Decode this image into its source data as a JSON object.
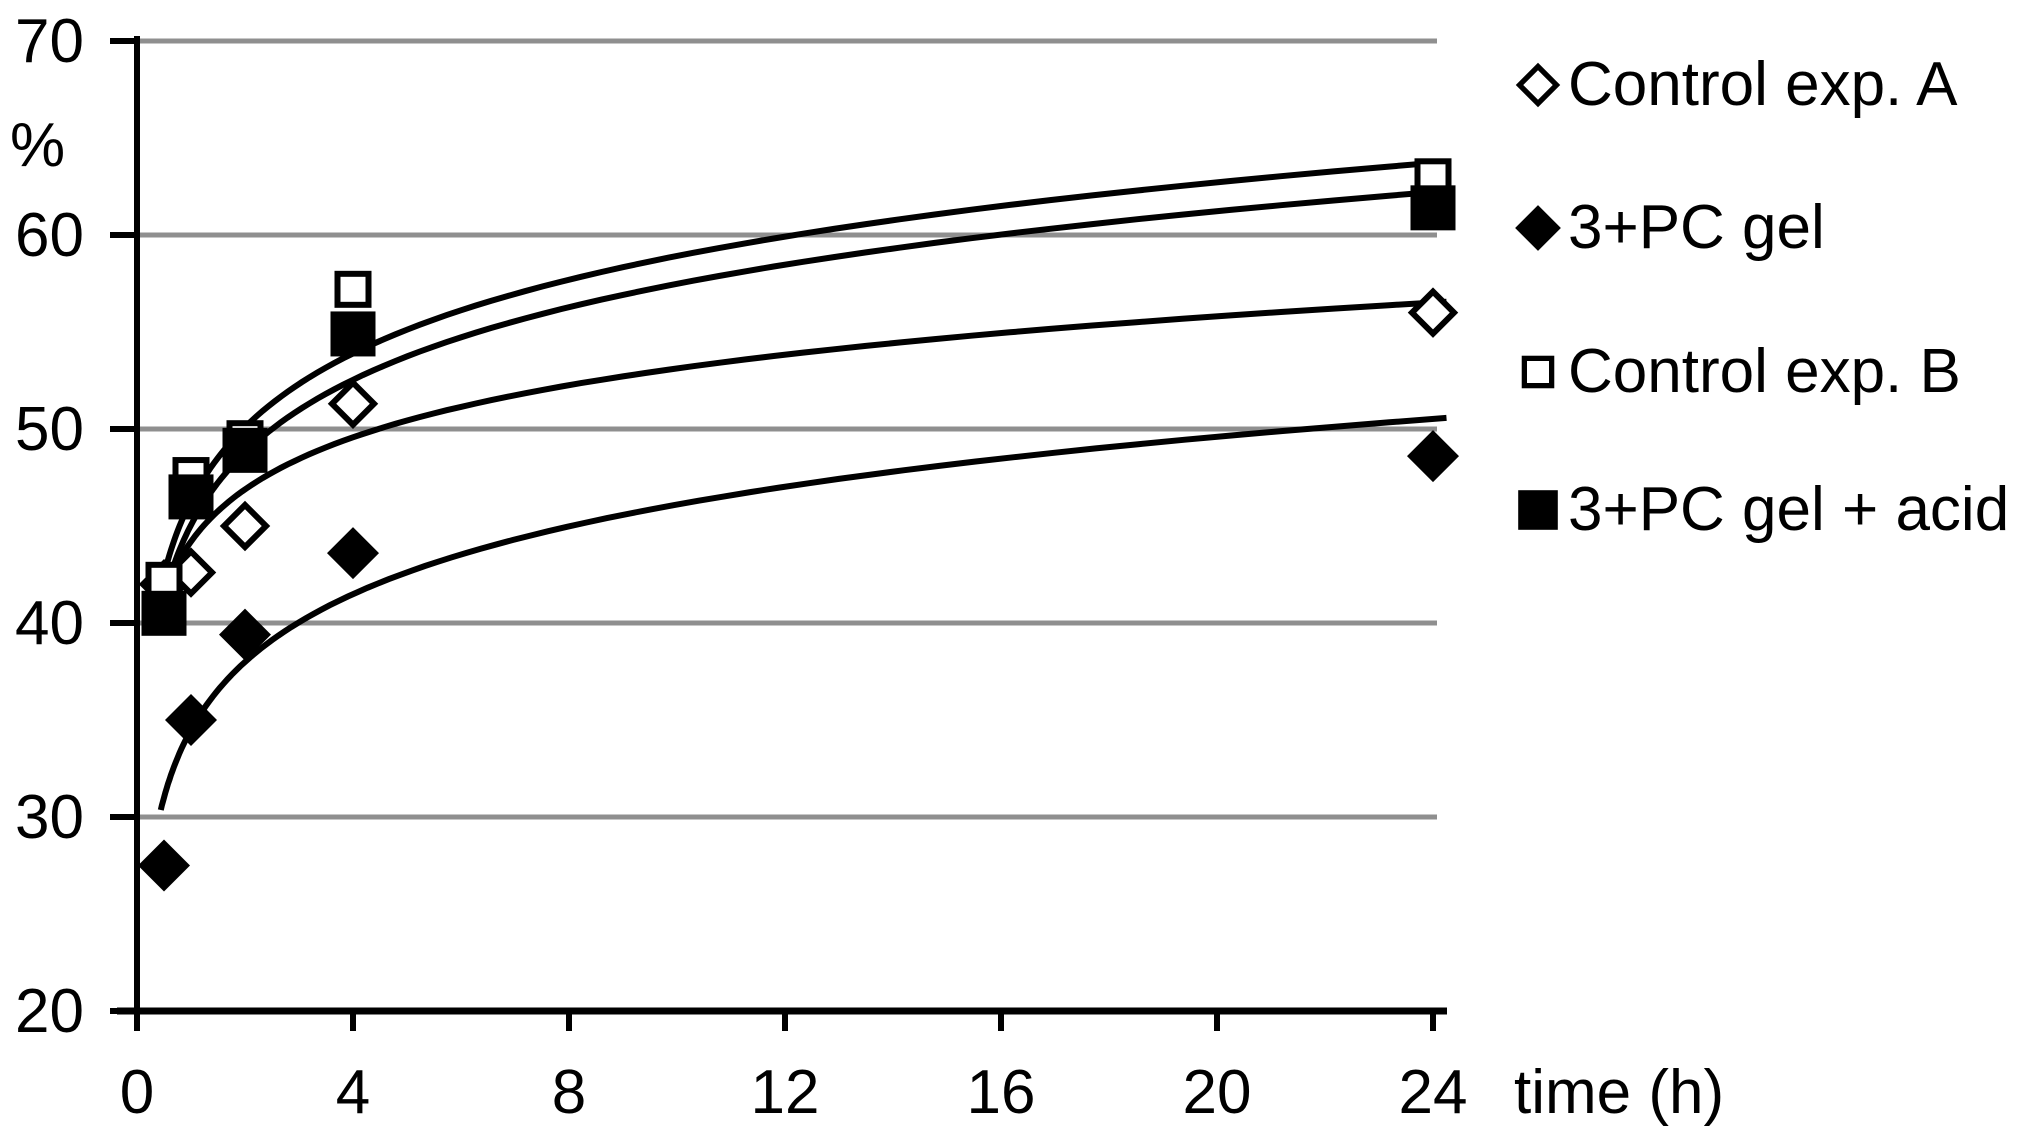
{
  "chart_data": {
    "type": "scatter",
    "title": "",
    "ylabel": "%",
    "xlabel": "time (h)",
    "xlim": [
      0,
      24
    ],
    "ylim": [
      20,
      70
    ],
    "x_ticks": [
      0,
      4,
      8,
      12,
      16,
      20,
      24
    ],
    "y_ticks": [
      70,
      60,
      50,
      40,
      30,
      20
    ],
    "grid": true,
    "legend_position": "right",
    "x": [
      0.5,
      1,
      2,
      4,
      24
    ],
    "series": [
      {
        "name": "Control exp. A",
        "marker": "open-diamond",
        "values": [
          42,
          42.6,
          45,
          51.3,
          56
        ],
        "trend_fit": {
          "type": "logarithmic",
          "intercept": 44.2,
          "slope": 3.875,
          "t_start": 0.42,
          "t_end": 24.25
        }
      },
      {
        "name": "3+PC gel",
        "marker": "filled-diamond",
        "values": [
          27.5,
          35,
          39.4,
          43.6,
          48.6
        ],
        "trend_fit": {
          "type": "logarithmic",
          "intercept": 34.5,
          "slope": 5.04,
          "t_start": 0.44,
          "t_end": 24.25
        }
      },
      {
        "name": "Control exp. B",
        "marker": "open-square",
        "values": [
          42.2,
          47.6,
          49.5,
          57.2,
          63
        ],
        "trend_fit": {
          "type": "logarithmic",
          "intercept": 46.3,
          "slope": 5.48,
          "t_start": 0.42,
          "t_end": 24.25
        }
      },
      {
        "name": "3+PC gel + acid",
        "marker": "filled-square",
        "values": [
          40.5,
          46.5,
          48.9,
          54.9,
          61.4
        ],
        "trend_fit": {
          "type": "logarithmic",
          "intercept": 45.05,
          "slope": 5.4,
          "t_start": 0.42,
          "t_end": 24.25
        }
      }
    ],
    "colors": {
      "marker": "#000000",
      "axis": "#000000",
      "gridline": "#8f8f8f",
      "background": "#ffffff",
      "text": "#000000"
    }
  }
}
